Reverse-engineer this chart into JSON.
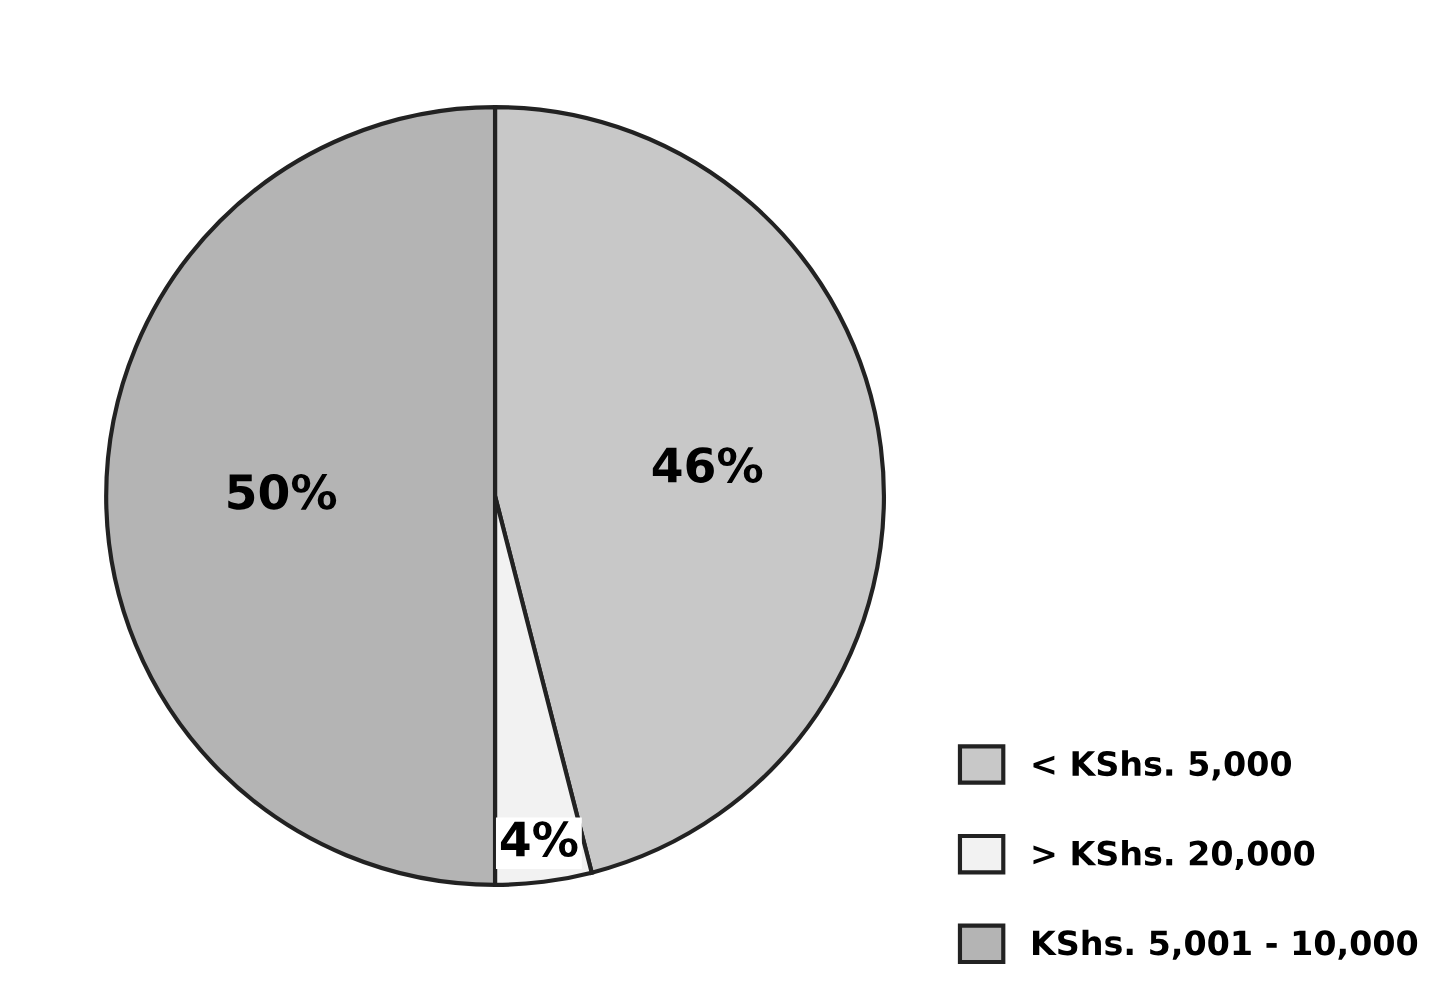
{
  "chart_data": {
    "type": "pie",
    "categories": [
      "< KShs. 5,000",
      "> KShs. 20,000",
      "KShs. 5,001 - 10,000"
    ],
    "values": [
      46,
      4,
      50
    ],
    "colors": [
      "#c8c8c8",
      "#f2f2f2",
      "#b4b4b4"
    ],
    "value_labels": [
      "46%",
      "4%",
      "50%"
    ],
    "legend": "bottom right"
  }
}
